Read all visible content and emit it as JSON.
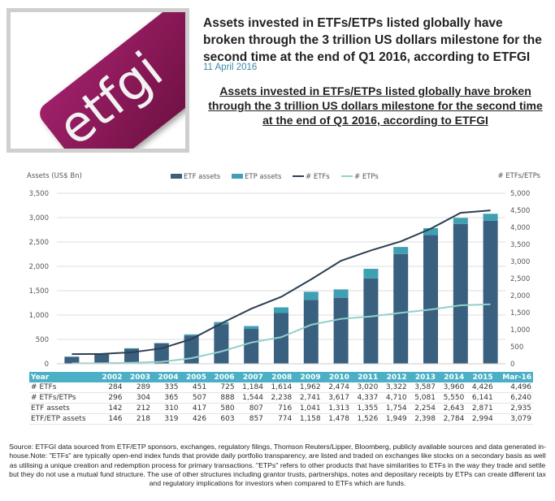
{
  "logo": {
    "text": "etfgi"
  },
  "header": {
    "title": "Assets invested in ETFs/ETPs listed globally have broken through the 3 trillion US dollars milestone for the second time at the end of Q1 2016, according to ETFGI",
    "date": "11 April 2016",
    "subtitle": "Assets invested in ETFs/ETPs listed globally have broken through the 3 trillion US dollars milestone for the second time at the end of Q1 2016, according to ETFGI"
  },
  "chart_data": {
    "type": "bar",
    "categories": [
      "2002",
      "2003",
      "2004",
      "2005",
      "2006",
      "2007",
      "2008",
      "2009",
      "2010",
      "2011",
      "2012",
      "2013",
      "2014",
      "2015",
      "Mar-16"
    ],
    "ylabel": "Assets (US$ Bn)",
    "y2label": "# ETFs/ETPs",
    "ylim": [
      0,
      3500
    ],
    "y2lim": [
      0,
      5000
    ],
    "yticks": [
      "0",
      "500",
      "1,000",
      "1,500",
      "2,000",
      "2,500",
      "3,000",
      "3,500"
    ],
    "y2ticks": [
      "0",
      "500",
      "1,000",
      "1,500",
      "2,000",
      "2,500",
      "3,000",
      "3,500",
      "4,000",
      "4,500",
      "5,000"
    ],
    "legend_position": "top",
    "grid": true,
    "series": [
      {
        "name": "ETF assets",
        "kind": "bar",
        "axis": "left",
        "color": "#3a6080",
        "values": [
          142,
          212,
          310,
          417,
          580,
          807,
          716,
          1041,
          1313,
          1355,
          1754,
          2254,
          2643,
          2871,
          2935
        ]
      },
      {
        "name": "ETP assets",
        "kind": "bar-stack",
        "axis": "left",
        "color": "#3f9fb3",
        "values": [
          4,
          6,
          9,
          9,
          23,
          50,
          58,
          117,
          165,
          171,
          195,
          144,
          141,
          123,
          144
        ]
      },
      {
        "name": "# ETFs",
        "kind": "line",
        "axis": "right",
        "color": "#2c3f52",
        "values": [
          284,
          289,
          335,
          451,
          725,
          1184,
          1614,
          1962,
          2474,
          3020,
          3322,
          3587,
          3960,
          4426,
          4496
        ]
      },
      {
        "name": "# ETPs",
        "kind": "line",
        "axis": "right",
        "color": "#92d0ca",
        "values": [
          12,
          15,
          30,
          56,
          163,
          360,
          624,
          779,
          1143,
          1317,
          1388,
          1494,
          1590,
          1715,
          1744
        ]
      }
    ]
  },
  "table": {
    "header": [
      "Year",
      "2002",
      "2003",
      "2004",
      "2005",
      "2006",
      "2007",
      "2008",
      "2009",
      "2010",
      "2011",
      "2012",
      "2013",
      "2014",
      "2015",
      "Mar-16"
    ],
    "rows": [
      [
        "# ETFs",
        "284",
        "289",
        "335",
        "451",
        "725",
        "1,184",
        "1,614",
        "1,962",
        "2,474",
        "3,020",
        "3,322",
        "3,587",
        "3,960",
        "4,426",
        "4,496"
      ],
      [
        "# ETFs/ETPs",
        "296",
        "304",
        "365",
        "507",
        "888",
        "1,544",
        "2,238",
        "2,741",
        "3,617",
        "4,337",
        "4,710",
        "5,081",
        "5,550",
        "6,141",
        "6,240"
      ],
      [
        "ETF assets",
        "142",
        "212",
        "310",
        "417",
        "580",
        "807",
        "716",
        "1,041",
        "1,313",
        "1,355",
        "1,754",
        "2,254",
        "2,643",
        "2,871",
        "2,935"
      ],
      [
        "ETF/ETP assets",
        "146",
        "218",
        "319",
        "426",
        "603",
        "857",
        "774",
        "1,158",
        "1,478",
        "1,526",
        "1,949",
        "2,398",
        "2,784",
        "2,994",
        "3,079"
      ]
    ]
  },
  "source": "Source: ETFGI data sourced from ETF/ETP sponsors, exchanges, regulatory filings, Thomson Reuters/Lipper, Bloomberg, publicly available sources and data generated in-house.Note: \"ETFs\" are typically open-end index funds that provide daily portfolio transparency, are listed and traded on exchanges like stocks on a secondary basis as well as utilising a unique creation and redemption process for primary transactions. \"ETPs\" refers to other products that have similarities to ETFs in the way they trade and settle but they do not use a mutual fund structure. The use of other structures including grantor trusts, partnerships, notes and depositary receipts by ETPs can create different tax and regulatory implications for investors when compared to ETFs which are funds."
}
